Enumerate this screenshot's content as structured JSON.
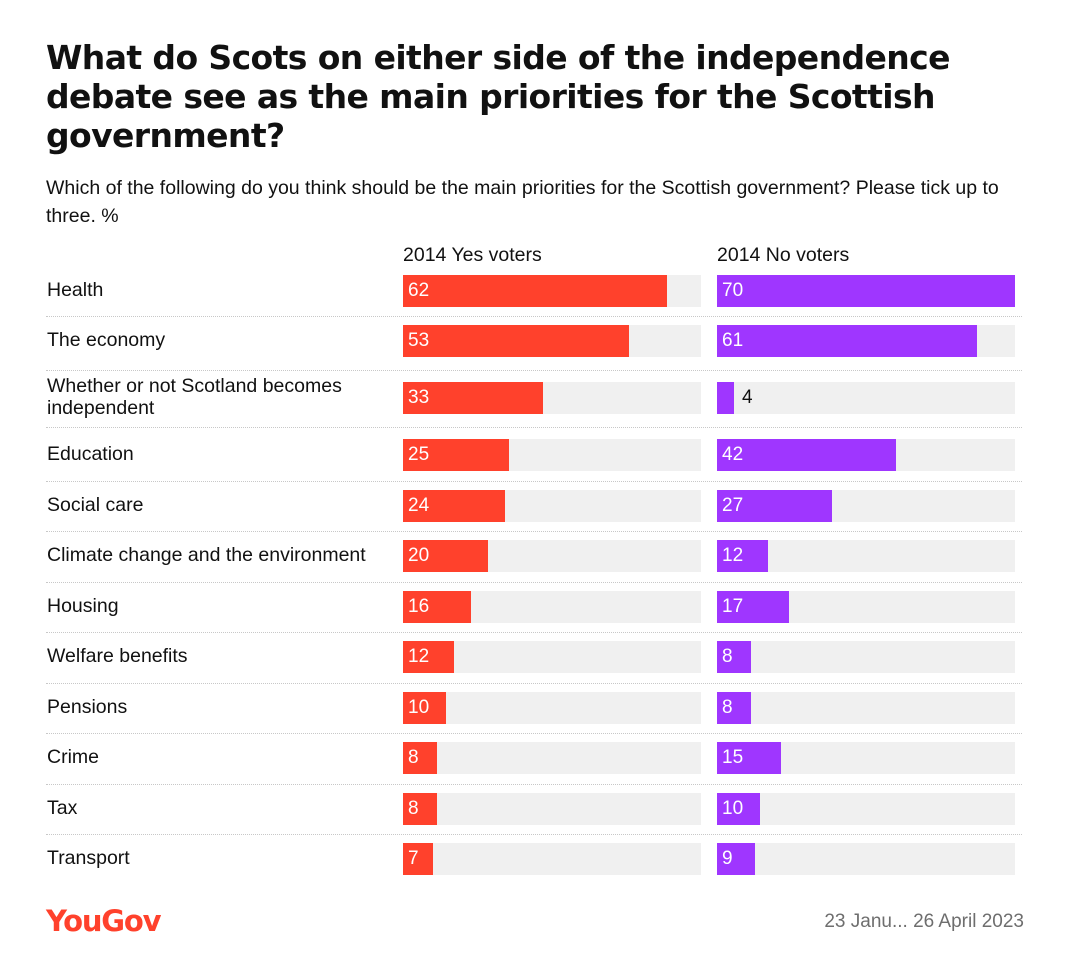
{
  "title": "What do Scots on either side of the independence debate see as the main priorities for the Scottish government?",
  "subtitle": "Which of the following do you think should be the main priorities for the Scottish government? Please tick up to three. %",
  "brand": "YouGov",
  "date_range": "23 Janu... 26 April 2023",
  "colors": {
    "yes": "#ff412c",
    "no": "#9f36ff",
    "track": "#f0f0f0"
  },
  "chart_data": {
    "type": "bar",
    "orientation": "horizontal",
    "unit": "%",
    "xlim": [
      0,
      70
    ],
    "categories": [
      "Health",
      "The economy",
      "Whether or not Scotland becomes independent",
      "Education",
      "Social care",
      "Climate change and the environment",
      "Housing",
      "Welfare benefits",
      "Pensions",
      "Crime",
      "Tax",
      "Transport"
    ],
    "series": [
      {
        "name": "2014 Yes voters",
        "values": [
          62,
          53,
          33,
          25,
          24,
          20,
          16,
          12,
          10,
          8,
          8,
          7
        ]
      },
      {
        "name": "2014 No voters",
        "values": [
          70,
          61,
          4,
          42,
          27,
          12,
          17,
          8,
          8,
          15,
          10,
          9
        ]
      }
    ]
  }
}
